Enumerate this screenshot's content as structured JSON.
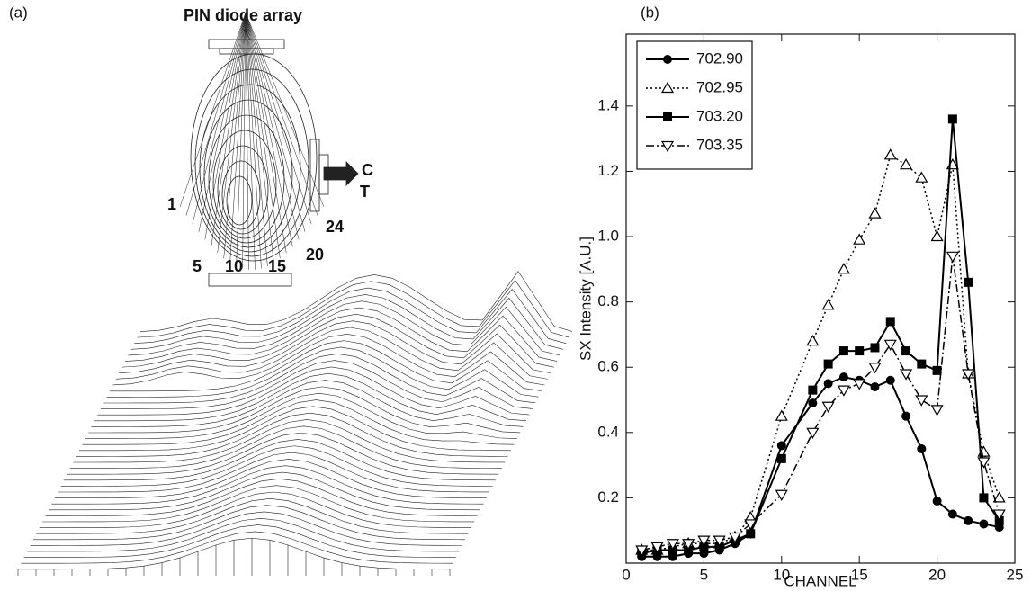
{
  "panel_a": {
    "label": "(a)",
    "title": "PIN diode array",
    "channel_labels": [
      "1",
      "5",
      "10",
      "15",
      "20",
      "24"
    ],
    "port_labels": [
      "C",
      "T"
    ]
  },
  "chart_data": {
    "type": "line",
    "panel_label": "(b)",
    "x_label": "CHANNEL",
    "y_label": "SX  Intensity    [A.U.]",
    "x": [
      1,
      2,
      3,
      4,
      5,
      6,
      7,
      8,
      10,
      12,
      13,
      14,
      15,
      16,
      17,
      18,
      19,
      20,
      21,
      22,
      23,
      24
    ],
    "series": [
      {
        "name": "702.90",
        "color": "#000000",
        "marker": "circle",
        "line_style": "solid",
        "values": [
          0.02,
          0.02,
          0.02,
          0.03,
          0.03,
          0.04,
          0.06,
          0.09,
          0.36,
          0.49,
          0.55,
          0.57,
          0.56,
          0.54,
          0.56,
          0.45,
          0.35,
          0.19,
          0.15,
          0.13,
          0.12,
          0.11
        ]
      },
      {
        "name": "702.95",
        "color": "#000000",
        "marker": "triangle",
        "line_style": "dotted",
        "values": [
          0.04,
          0.04,
          0.05,
          0.06,
          0.06,
          0.06,
          0.08,
          0.14,
          0.45,
          0.68,
          0.79,
          0.9,
          0.99,
          1.07,
          1.25,
          1.22,
          1.18,
          1.0,
          1.22,
          0.58,
          0.34,
          0.2
        ]
      },
      {
        "name": "703.20",
        "color": "#000000",
        "marker": "square",
        "line_style": "solid",
        "values": [
          0.03,
          0.04,
          0.04,
          0.04,
          0.05,
          0.05,
          0.07,
          0.09,
          0.32,
          0.53,
          0.61,
          0.65,
          0.65,
          0.66,
          0.74,
          0.65,
          0.61,
          0.59,
          1.36,
          0.86,
          0.2,
          0.13
        ]
      },
      {
        "name": "703.35",
        "color": "#000000",
        "marker": "triangle-down",
        "line_style": "dashdot",
        "values": [
          0.04,
          0.05,
          0.06,
          0.06,
          0.07,
          0.07,
          0.08,
          0.12,
          0.21,
          0.4,
          0.48,
          0.53,
          0.55,
          0.6,
          0.67,
          0.58,
          0.5,
          0.47,
          0.94,
          0.58,
          0.31,
          0.15
        ]
      }
    ],
    "xlim": [
      0,
      25
    ],
    "xticks": [
      0,
      5,
      10,
      15,
      20,
      25
    ],
    "ylim": [
      0,
      1.62
    ],
    "yticks": [
      0.2,
      0.4,
      0.6,
      0.8,
      {
        "value": 1,
        "label": "1.0"
      },
      1.2,
      1.4
    ],
    "legend": "top-left",
    "grid": false
  }
}
